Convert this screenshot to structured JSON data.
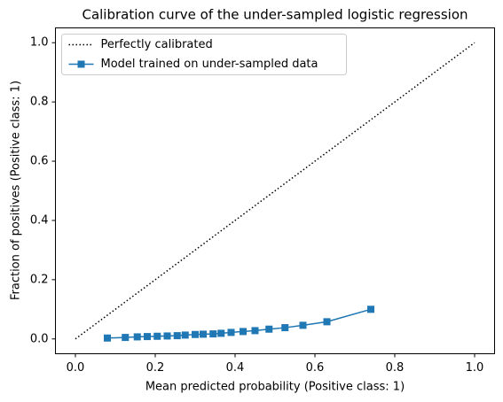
{
  "chart_data": {
    "type": "line",
    "title": "Calibration curve of the under-sampled logistic regression",
    "x_label": "Mean predicted probability (Positive class: 1)",
    "y_label": "Fraction of positives (Positive class: 1)",
    "xlim": [
      -0.05,
      1.05
    ],
    "ylim": [
      -0.05,
      1.05
    ],
    "xticks": [
      {
        "value": 0,
        "label": "0.0"
      },
      {
        "value": 0.2,
        "label": "0.2"
      },
      {
        "value": 0.4,
        "label": "0.4"
      },
      {
        "value": 0.6,
        "label": "0.6"
      },
      {
        "value": 0.8,
        "label": "0.8"
      },
      {
        "value": 1,
        "label": "1.0"
      }
    ],
    "yticks": [
      {
        "value": 0,
        "label": "0.0"
      },
      {
        "value": 0.2,
        "label": "0.2"
      },
      {
        "value": 0.4,
        "label": "0.4"
      },
      {
        "value": 0.6,
        "label": "0.6"
      },
      {
        "value": 0.8,
        "label": "0.8"
      },
      {
        "value": 1,
        "label": "1.0"
      }
    ],
    "grid": false,
    "legend": "upper-left",
    "series": [
      {
        "name": "Perfectly calibrated",
        "color": "#000000",
        "linestyle": "dotted",
        "marker": "none",
        "x": [
          0,
          1
        ],
        "values": [
          0,
          1
        ]
      },
      {
        "name": "Model trained on under-sampled data",
        "color": "#1f77b4",
        "linestyle": "solid",
        "marker": "square",
        "x": [
          0.08,
          0.125,
          0.155,
          0.18,
          0.205,
          0.23,
          0.255,
          0.275,
          0.3,
          0.32,
          0.345,
          0.365,
          0.39,
          0.42,
          0.45,
          0.485,
          0.525,
          0.57,
          0.63,
          0.74
        ],
        "values": [
          0.003,
          0.005,
          0.007,
          0.008,
          0.009,
          0.01,
          0.011,
          0.013,
          0.015,
          0.016,
          0.017,
          0.019,
          0.022,
          0.025,
          0.028,
          0.033,
          0.038,
          0.046,
          0.058,
          0.1
        ]
      }
    ]
  }
}
